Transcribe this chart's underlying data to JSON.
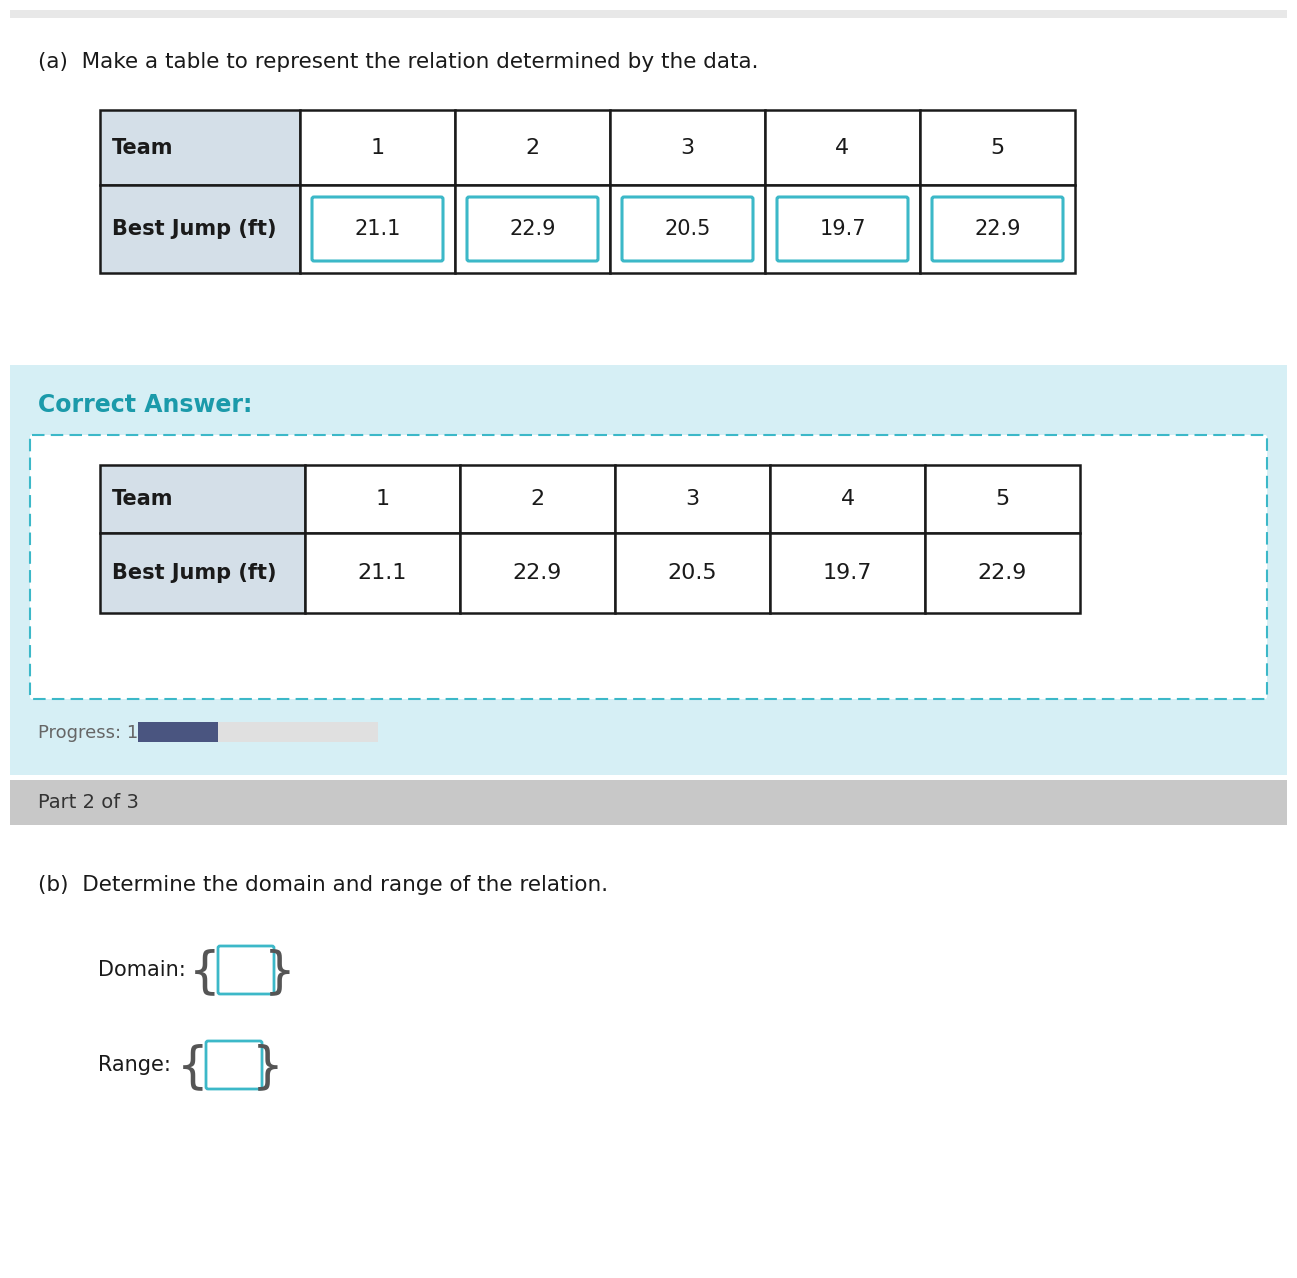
{
  "title_a": "(a)  Make a table to represent the relation determined by the data.",
  "teams": [
    "1",
    "2",
    "3",
    "4",
    "5"
  ],
  "jumps": [
    "21.1",
    "22.9",
    "20.5",
    "19.7",
    "22.9"
  ],
  "row_label_0": "Team",
  "row_label_1": "Best Jump (ft)",
  "correct_answer_label": "Correct Answer:",
  "progress_label": "Progress: 1/3",
  "part2_label": "Part 2 of 3",
  "title_b": "(b)  Determine the domain and range of the relation.",
  "domain_label": "Domain:",
  "range_label": "Range:",
  "bg_white": "#ffffff",
  "bg_light_blue": "#d6eff5",
  "bg_gray_section": "#c8c8c8",
  "header_cell_bg": "#d4dfe8",
  "table_border": "#1a1a1a",
  "teal_color": "#3cb8c8",
  "correct_answer_color": "#1b9aaa",
  "progress_bar_filled": "#4a5580",
  "progress_bar_empty": "#e0e0e0",
  "top_strip_color": "#e8e8e8",
  "section_divider": "#c0c0c0"
}
